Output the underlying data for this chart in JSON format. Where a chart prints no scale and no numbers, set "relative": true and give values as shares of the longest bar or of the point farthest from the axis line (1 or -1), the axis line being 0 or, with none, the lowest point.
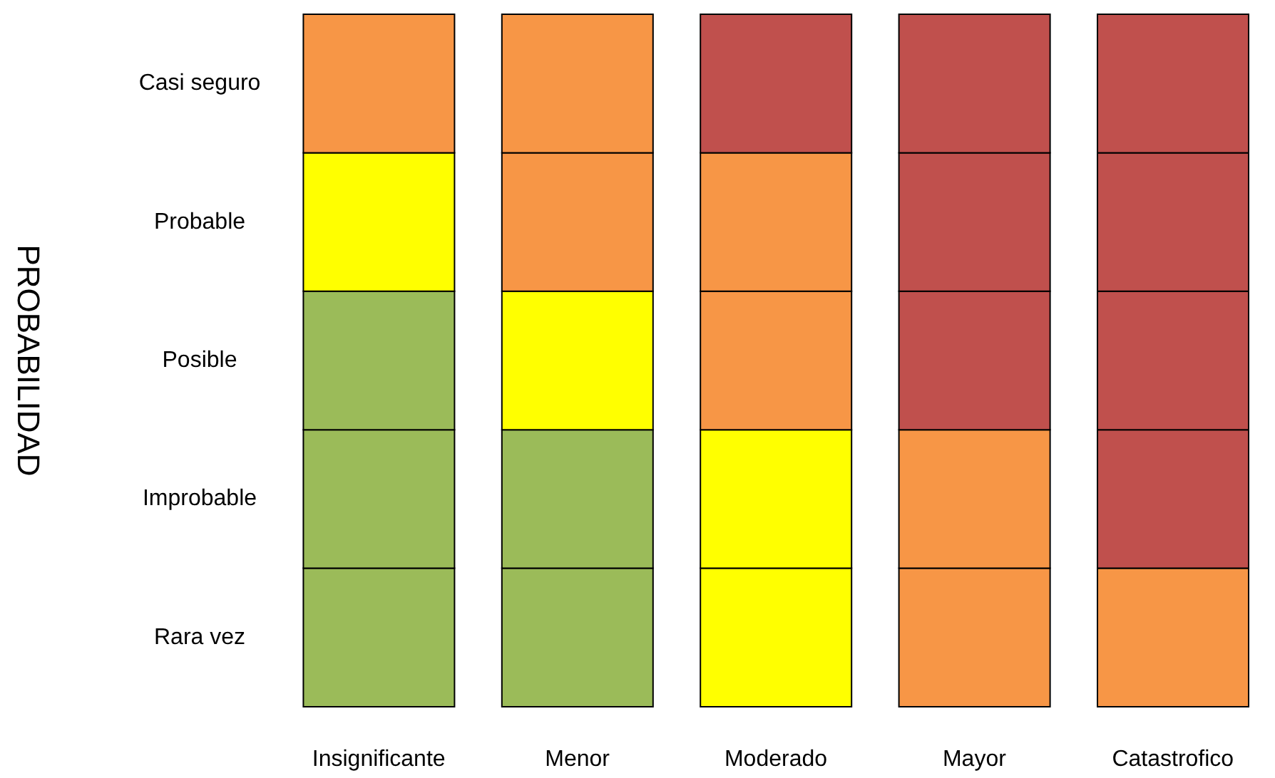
{
  "chart_data": {
    "type": "bar",
    "stacked": true,
    "relative": true,
    "annotations": [
      "PROBABILIDAD"
    ],
    "legend": false,
    "grid": false,
    "categories": [
      "Insignificante",
      "Menor",
      "Moderado",
      "Mayor",
      "Catastrofico"
    ],
    "series": [
      {
        "name": "Rara vez",
        "colors": [
          "#9bbb59",
          "#9bbb59",
          "#ffff00",
          "#f79646",
          "#f79646"
        ],
        "values": [
          0.2,
          0.2,
          0.2,
          0.2,
          0.2
        ]
      },
      {
        "name": "Improbable",
        "colors": [
          "#9bbb59",
          "#9bbb59",
          "#ffff00",
          "#f79646",
          "#c0504d"
        ],
        "values": [
          0.2,
          0.2,
          0.2,
          0.2,
          0.2
        ]
      },
      {
        "name": "Posible",
        "colors": [
          "#9bbb59",
          "#ffff00",
          "#f79646",
          "#c0504d",
          "#c0504d"
        ],
        "values": [
          0.2,
          0.2,
          0.2,
          0.2,
          0.2
        ]
      },
      {
        "name": "Probable",
        "colors": [
          "#ffff00",
          "#f79646",
          "#f79646",
          "#c0504d",
          "#c0504d"
        ],
        "values": [
          0.2,
          0.2,
          0.2,
          0.2,
          0.2
        ]
      },
      {
        "name": "Casi seguro",
        "colors": [
          "#f79646",
          "#f79646",
          "#c0504d",
          "#c0504d",
          "#c0504d"
        ],
        "values": [
          0.2,
          0.2,
          0.2,
          0.2,
          0.2
        ]
      }
    ]
  }
}
